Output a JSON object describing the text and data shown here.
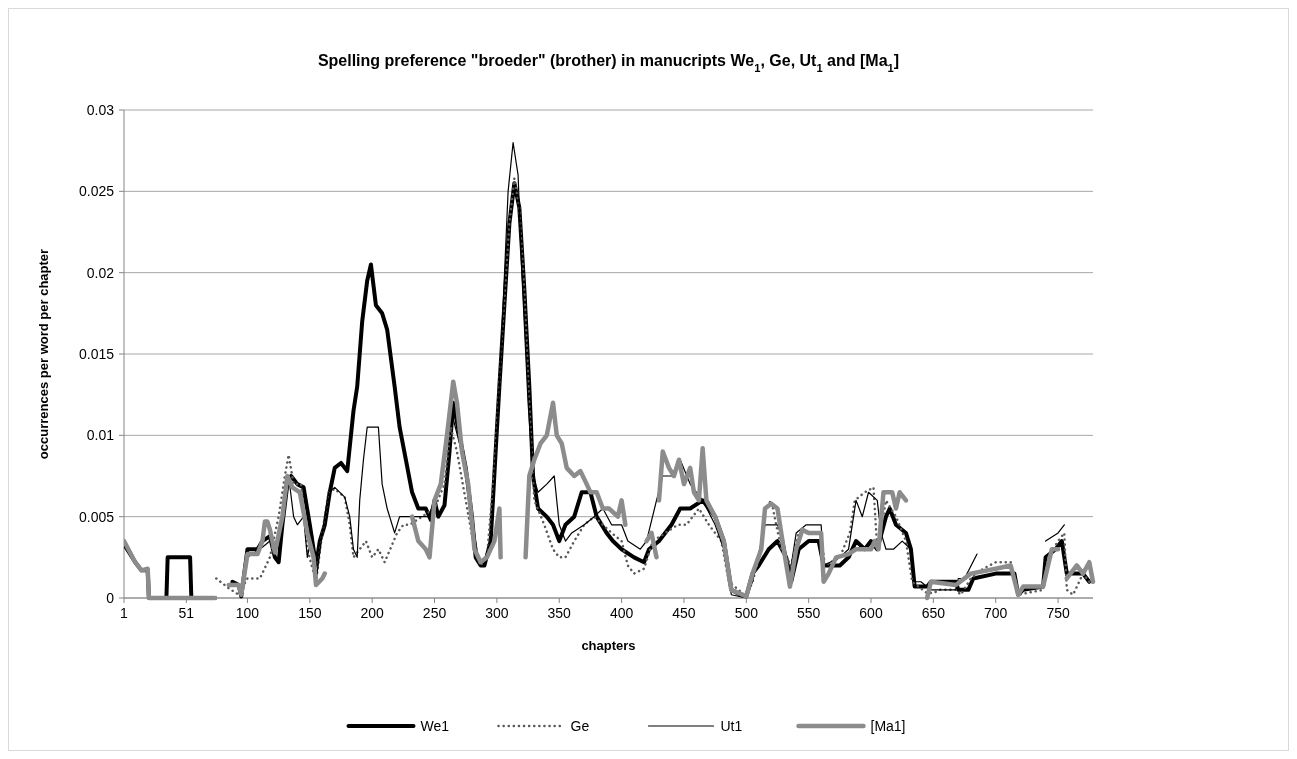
{
  "chart_data": {
    "type": "line",
    "title": "Spelling preference \"broeder\" (brother) in manucripts We$_{1}$, Ge, Ut$_{1}$ and [Ma$_{1}$]",
    "xlabel": "chapters",
    "ylabel": "occurrences per word per chapter",
    "xlim": [
      1,
      778
    ],
    "xticks": [
      1,
      51,
      100,
      150,
      200,
      250,
      300,
      350,
      400,
      450,
      500,
      550,
      600,
      650,
      700,
      750
    ],
    "ylim": [
      0,
      0.03
    ],
    "yticks": [
      0,
      0.005,
      0.01,
      0.015,
      0.02,
      0.025,
      0.03
    ],
    "grid": "y",
    "legend": "bottom",
    "marker": "none",
    "series": [
      {
        "name": "We1",
        "color": "#000000",
        "line_style": "solid",
        "x": [
          1,
          10,
          15,
          20,
          21,
          35,
          36,
          54,
          55,
          74,
          75,
          88,
          93,
          95,
          100,
          108,
          112,
          118,
          122,
          125,
          128,
          132,
          135,
          140,
          145,
          150,
          155,
          158,
          162,
          166,
          170,
          175,
          180,
          185,
          188,
          192,
          196,
          199,
          203,
          208,
          212,
          218,
          222,
          227,
          232,
          237,
          243,
          247,
          250,
          253,
          258,
          262,
          265,
          270,
          275,
          280,
          283,
          287,
          290,
          295,
          299,
          302,
          306,
          310,
          314,
          318,
          322,
          326,
          329,
          333,
          340,
          345,
          350,
          355,
          362,
          368,
          375,
          380,
          388,
          393,
          400,
          410,
          418,
          422,
          430,
          440,
          447,
          455,
          465,
          475,
          482,
          488,
          495,
          500,
          505,
          510,
          518,
          525,
          532,
          536,
          542,
          550,
          558,
          562,
          575,
          582,
          588,
          595,
          600,
          605,
          612,
          615,
          620,
          628,
          632,
          635,
          645,
          648,
          668,
          670,
          678,
          682,
          700,
          715,
          718,
          722,
          738,
          740,
          748,
          753,
          757,
          770,
          775
        ],
        "values": [
          0.0033,
          0.0022,
          0.0017,
          0.0017,
          0,
          0,
          0.0025,
          0.0025,
          0,
          0,
          null,
          0.001,
          0.0008,
          0.0001,
          0.003,
          0.003,
          0.0035,
          0.0038,
          0.0025,
          0.0022,
          0.0045,
          0.007,
          0.0075,
          0.007,
          0.0068,
          0.0045,
          0.002,
          0.0035,
          0.0045,
          0.0065,
          0.008,
          0.0083,
          0.0078,
          0.0115,
          0.013,
          0.017,
          0.0195,
          0.0205,
          0.018,
          0.0175,
          0.0165,
          0.013,
          0.0105,
          0.0085,
          0.0065,
          0.0055,
          0.0055,
          0.0048,
          0.006,
          0.005,
          0.0057,
          0.009,
          0.012,
          0.01,
          0.008,
          0.005,
          0.0025,
          0.002,
          0.002,
          0.0035,
          0.009,
          0.013,
          0.018,
          0.023,
          0.0255,
          0.024,
          0.019,
          0.013,
          0.0075,
          0.0055,
          0.005,
          0.0045,
          0.0035,
          0.0045,
          0.005,
          0.0065,
          0.0065,
          0.005,
          0.004,
          0.0035,
          0.003,
          0.0025,
          0.0022,
          0.003,
          0.0035,
          0.0045,
          0.0055,
          0.0055,
          0.006,
          0.005,
          0.0035,
          0.0005,
          0.0002,
          0.0001,
          0.0015,
          0.002,
          0.003,
          0.0035,
          0.0025,
          0.001,
          0.003,
          0.0035,
          0.0035,
          0.002,
          0.002,
          0.0025,
          0.0035,
          0.003,
          0.0035,
          0.003,
          0.005,
          0.0055,
          0.0045,
          0.004,
          0.003,
          0.0007,
          0.0007,
          0.001,
          0.001,
          0.0005,
          0.0005,
          0.0012,
          0.0015,
          0.0015,
          0.0002,
          0.0005,
          0.0007,
          0.0025,
          0.003,
          0.0035,
          0.0015,
          0.0015,
          0.001
        ]
      },
      {
        "name": "Ge",
        "color": "#595959",
        "line_style": "dotted",
        "x": [
          75,
          85,
          93,
          100,
          110,
          118,
          125,
          130,
          133,
          137,
          143,
          148,
          155,
          160,
          165,
          170,
          178,
          182,
          185,
          190,
          195,
          200,
          205,
          210,
          220,
          225,
          230,
          240,
          250,
          258,
          263,
          268,
          275,
          282,
          287,
          292,
          298,
          304,
          310,
          314,
          318,
          322,
          326,
          330,
          338,
          345,
          350,
          355,
          362,
          370,
          378,
          385,
          392,
          400,
          405,
          410,
          418,
          425,
          435,
          445,
          452,
          462,
          470,
          480,
          486,
          500,
          505,
          512,
          515,
          520,
          528,
          536,
          542,
          550,
          560,
          563,
          575,
          583,
          587,
          595,
          602,
          605,
          612,
          620,
          628,
          633,
          638,
          645,
          650,
          655,
          668,
          672,
          680,
          690,
          700,
          712,
          718,
          738,
          742,
          750,
          755,
          757,
          762,
          770,
          775
        ],
        "values": [
          0.0012,
          0.0006,
          0.0002,
          0.0012,
          0.0012,
          0.0025,
          0.005,
          0.0075,
          0.0088,
          0.007,
          0.007,
          0.003,
          0.001,
          0.004,
          0.0065,
          0.0067,
          0.0062,
          0.0045,
          0.0025,
          0.003,
          0.0035,
          0.0025,
          0.003,
          0.0022,
          0.004,
          0.0045,
          0.0045,
          0.005,
          0.0055,
          0.007,
          0.0105,
          0.009,
          0.006,
          0.003,
          0.002,
          0.0025,
          0.008,
          0.016,
          0.023,
          0.0258,
          0.024,
          0.019,
          0.012,
          0.006,
          0.0045,
          0.003,
          0.0025,
          0.0025,
          0.0035,
          0.0045,
          0.005,
          0.0045,
          0.004,
          0.0035,
          0.002,
          0.0015,
          0.0018,
          0.0035,
          0.004,
          0.0045,
          0.0045,
          0.0055,
          0.0045,
          0.0035,
          0.001,
          0.0001,
          0.001,
          0.003,
          0.0055,
          0.006,
          0.003,
          0.002,
          0.004,
          0.004,
          0.004,
          0.002,
          0.0025,
          0.004,
          0.006,
          0.0065,
          0.0068,
          0.003,
          0.006,
          0.005,
          0.0035,
          0.001,
          0.0007,
          0.0003,
          0.0003,
          0.0005,
          0.0005,
          0.0002,
          0.0012,
          0.0018,
          0.0022,
          0.0022,
          0.0002,
          0.0005,
          0.0025,
          0.0035,
          0.004,
          0.0005,
          0.0002,
          0.0015,
          0.001
        ]
      },
      {
        "name": "Ut1",
        "color": "#000000",
        "line_style": "solid",
        "x": [
          95,
          100,
          110,
          118,
          125,
          130,
          133,
          137,
          140,
          145,
          148,
          152,
          155,
          160,
          165,
          170,
          178,
          182,
          185,
          188,
          190,
          193,
          196,
          200,
          205,
          208,
          212,
          218,
          222,
          228,
          235,
          245,
          255,
          262,
          265,
          270,
          276,
          280,
          285,
          290,
          296,
          300,
          305,
          309,
          313,
          317,
          320,
          325,
          329,
          333,
          340,
          346,
          350,
          355,
          360,
          370,
          378,
          385,
          392,
          400,
          405,
          415,
          420,
          428,
          433,
          440,
          447,
          455,
          465,
          475,
          482,
          488,
          500,
          505,
          515,
          525,
          530,
          535,
          540,
          548,
          560,
          562,
          575,
          582,
          588,
          593,
          598,
          605,
          608,
          612,
          618,
          625,
          632,
          635,
          640,
          648,
          668,
          670,
          675,
          685,
          686,
          740,
          750,
          755
        ],
        "values": [
          0.0005,
          0.0025,
          0.003,
          0.0035,
          0.003,
          0.006,
          0.0075,
          0.005,
          0.0045,
          0.005,
          0.0025,
          0.004,
          0.001,
          0.004,
          0.0065,
          0.0068,
          0.0062,
          0.005,
          0.003,
          0.0025,
          0.006,
          0.0085,
          0.0105,
          0.0105,
          0.0105,
          0.007,
          0.0055,
          0.004,
          0.005,
          0.005,
          0.005,
          0.005,
          0.007,
          0.0115,
          0.011,
          0.0095,
          0.0075,
          0.005,
          0.0025,
          0.002,
          0.004,
          0.01,
          0.018,
          0.025,
          0.028,
          0.026,
          0.02,
          0.012,
          0.0075,
          0.0065,
          0.007,
          0.0075,
          0.0045,
          0.0035,
          0.004,
          0.0045,
          0.005,
          0.0055,
          0.0045,
          0.0045,
          0.0035,
          0.003,
          0.0035,
          0.006,
          0.0075,
          0.0075,
          0.0085,
          0.007,
          0.006,
          0.0045,
          0.003,
          0.0002,
          0,
          0.001,
          0.0045,
          0.0045,
          0.0035,
          0.0015,
          0.004,
          0.0045,
          0.0045,
          0.002,
          0.0025,
          0.003,
          0.006,
          0.005,
          0.0065,
          0.006,
          0.004,
          0.003,
          0.003,
          0.0035,
          0.003,
          0.001,
          0.001,
          0.0005,
          0.0005,
          0.0012,
          0.0012,
          0.0027,
          null,
          0.0035,
          0.004,
          0.0045
        ]
      },
      {
        "name": "[Ma1]",
        "color": "#8c8c8c",
        "line_style": "solid",
        "x": [
          1,
          10,
          15,
          20,
          21,
          74,
          75,
          85,
          93,
          95,
          100,
          108,
          112,
          114,
          116,
          118,
          122,
          128,
          132,
          136,
          142,
          148,
          153,
          155,
          160,
          162,
          163,
          232,
          237,
          243,
          246,
          250,
          255,
          260,
          265,
          268,
          272,
          277,
          282,
          287,
          292,
          298,
          302,
          303,
          304,
          323,
          326,
          330,
          335,
          340,
          345,
          348,
          352,
          356,
          362,
          367,
          372,
          375,
          380,
          385,
          390,
          397,
          400,
          403,
          404,
          420,
          424,
          428,
          429,
          430,
          433,
          438,
          442,
          446,
          450,
          455,
          458,
          462,
          465,
          468,
          475,
          482,
          488,
          500,
          505,
          512,
          515,
          520,
          525,
          530,
          535,
          540,
          545,
          550,
          560,
          562,
          566,
          572,
          582,
          588,
          600,
          603,
          606,
          610,
          617,
          620,
          623,
          628,
          629,
          645,
          648,
          668,
          680,
          700,
          712,
          718,
          722,
          738,
          745,
          750,
          751,
          757,
          765,
          770,
          775,
          778
        ],
        "values": [
          0.0035,
          0.0022,
          0.0017,
          0.0018,
          0,
          0,
          null,
          0.0008,
          0.0008,
          0.0002,
          0.0027,
          0.0027,
          0.0035,
          0.0047,
          0.0047,
          0.0042,
          0.0028,
          0.005,
          0.0075,
          0.0068,
          0.0065,
          0.004,
          0.0025,
          0.0008,
          0.0012,
          0.0015,
          null,
          0.005,
          0.0035,
          0.003,
          0.0025,
          0.006,
          0.007,
          0.01,
          0.0133,
          0.012,
          0.009,
          0.007,
          0.003,
          0.0022,
          0.0025,
          0.0035,
          0.0055,
          0.0025,
          null,
          0.0025,
          0.0075,
          0.0085,
          0.0095,
          0.01,
          0.012,
          0.01,
          0.0095,
          0.008,
          0.0075,
          0.0078,
          0.007,
          0.0065,
          0.0065,
          0.0055,
          0.0055,
          0.005,
          0.006,
          0.0045,
          null,
          0.0035,
          0.004,
          0.0025,
          null,
          0.006,
          0.009,
          0.008,
          0.0075,
          0.0085,
          0.007,
          0.008,
          0.0065,
          0.006,
          0.0092,
          0.006,
          0.005,
          0.0035,
          0.0005,
          0.0001,
          0.0015,
          0.003,
          0.0055,
          0.0058,
          0.0055,
          0.003,
          0.0007,
          0.003,
          0.0042,
          0.004,
          0.004,
          0.001,
          0.0015,
          0.0025,
          0.0027,
          0.003,
          0.003,
          0.0035,
          0.003,
          0.0065,
          0.0065,
          0.0055,
          0.0065,
          0.006,
          null,
          0,
          0.001,
          0.0008,
          0.0015,
          0.0018,
          0.002,
          0.0002,
          0.0007,
          0.0007,
          0.003,
          0.003,
          null,
          0.0012,
          0.002,
          0.0015,
          0.0022,
          0.001
        ]
      }
    ]
  }
}
